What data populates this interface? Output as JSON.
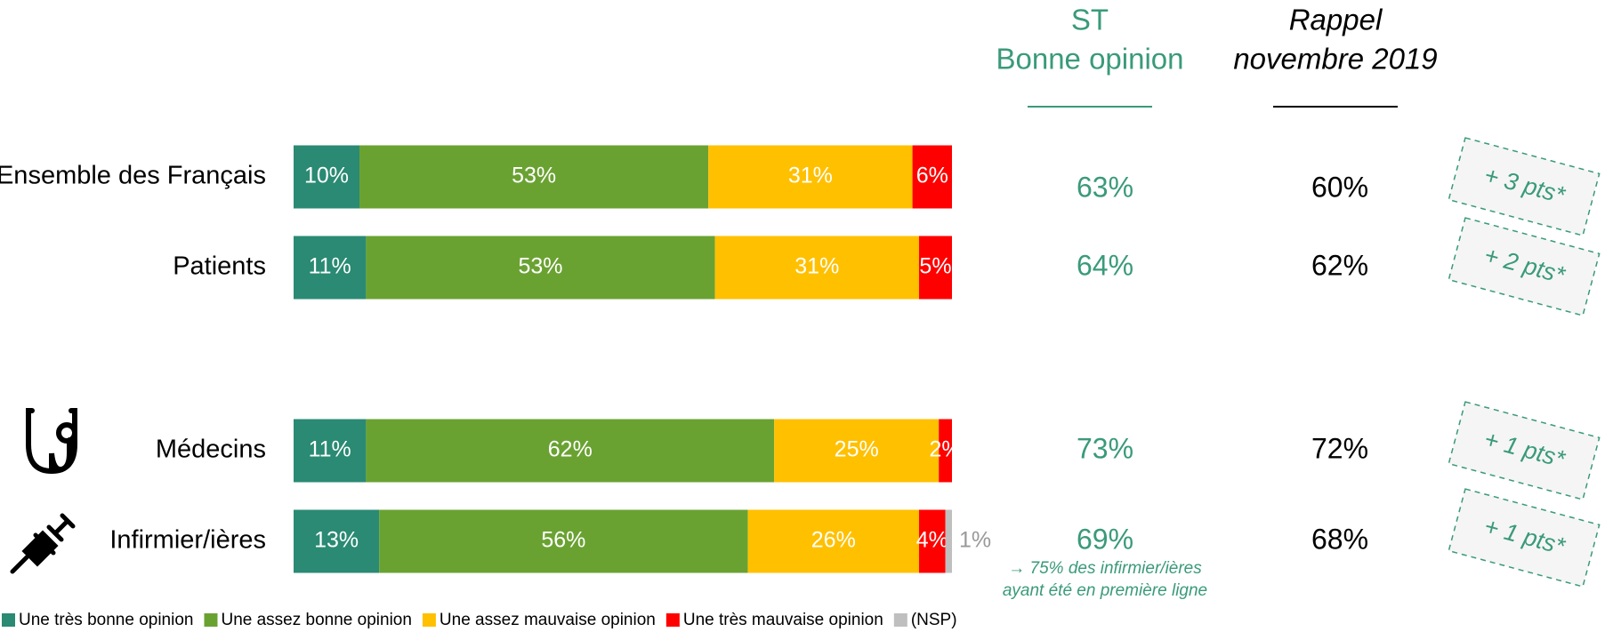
{
  "chart_data": {
    "type": "stacked_barh",
    "categories": [
      "Ensemble des Français",
      "Patients",
      "Médecins",
      "Infirmier/ières"
    ],
    "xlim": [
      0,
      100
    ],
    "series": [
      {
        "name": "Une très bonne opinion",
        "color": "#2a8a73",
        "values": [
          10,
          11,
          11,
          13
        ],
        "value_labels": [
          "10%",
          "11%",
          "11%",
          "13%"
        ]
      },
      {
        "name": "Une assez bonne opinion",
        "color": "#6aa232",
        "values": [
          53,
          53,
          62,
          56
        ],
        "value_labels": [
          "53%",
          "53%",
          "62%",
          "56%"
        ]
      },
      {
        "name": "Une assez mauvaise opinion",
        "color": "#ffc000",
        "values": [
          31,
          31,
          25,
          26
        ],
        "value_labels": [
          "31%",
          "31%",
          "25%",
          "26%"
        ]
      },
      {
        "name": "Une très mauvaise opinion",
        "color": "#ff0000",
        "values": [
          6,
          5,
          2,
          4
        ],
        "value_labels": [
          "6%",
          "5%",
          "2%",
          "4%"
        ]
      },
      {
        "name": "(NSP)",
        "color": "#bfbfbf",
        "values": [
          null,
          null,
          null,
          1
        ],
        "value_labels": [
          null,
          null,
          null,
          "1%"
        ]
      }
    ],
    "columns": [
      {
        "title": [
          "ST",
          "Bonne opinion"
        ],
        "color": "#3a9a7a",
        "values": [
          63,
          64,
          73,
          69
        ],
        "value_labels": [
          "63%",
          "64%",
          "73%",
          "69%"
        ]
      },
      {
        "title": [
          "Rappel",
          "novembre 2019"
        ],
        "color": "#000000",
        "values": [
          60,
          62,
          72,
          68
        ],
        "value_labels": [
          "60%",
          "62%",
          "72%",
          "68%"
        ]
      }
    ],
    "changes": {
      "values": [
        3,
        2,
        1,
        1
      ],
      "value_labels": [
        "+ 3 pts*",
        "+ 2 pts*",
        "+ 1 pts*",
        "+ 1 pts*"
      ],
      "color": "#3a9a7a"
    },
    "note": [
      "→ 75% des infirmier/ières",
      "ayant été en première ligne"
    ]
  }
}
